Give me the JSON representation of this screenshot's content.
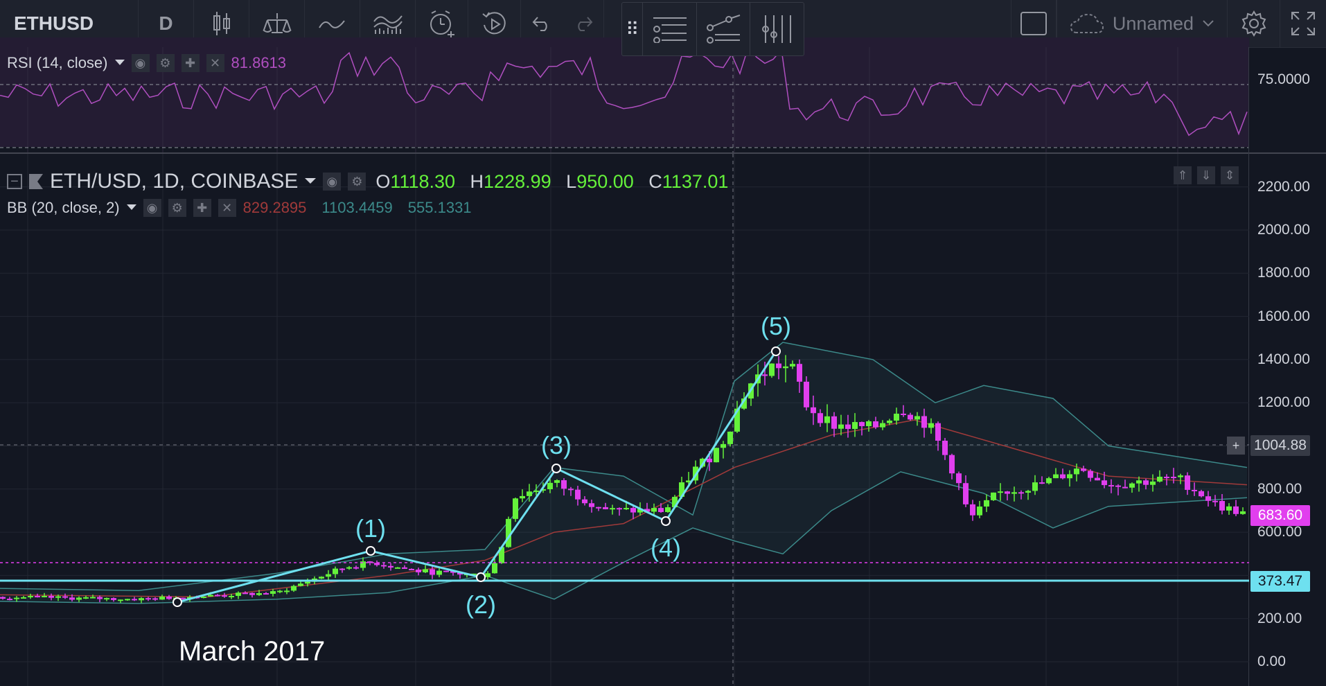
{
  "toolbar": {
    "symbol": "ETHUSD",
    "interval": "D",
    "layout_name": "Unnamed",
    "icons": [
      "candles-icon",
      "compare-icon",
      "indicators-icon",
      "templates-icon",
      "alert-icon",
      "replay-icon",
      "undo-icon",
      "redo-icon",
      "fullscreen-square-icon",
      "cloud-icon",
      "chevron-down-icon",
      "settings-icon",
      "expand-icon"
    ]
  },
  "drawing_toolbar": {
    "icons": [
      "grip-icon",
      "horizontal-lines-icon",
      "trend-line-icon",
      "fib-tool-icon"
    ]
  },
  "rsi": {
    "label": "RSI (14, close)",
    "value": "81.8613",
    "axis_label": "75.0000",
    "color": "#b04fc0"
  },
  "main": {
    "title": "ETH/USD, 1D, COINBASE",
    "ohlc": {
      "o_label": "O",
      "o": "1118.30",
      "h_label": "H",
      "h": "1228.99",
      "l_label": "L",
      "l": "950.00",
      "c_label": "C",
      "c": "1137.01"
    },
    "bb": {
      "label": "BB (20, close, 2)",
      "basis": "829.2895",
      "upper": "1103.4459",
      "lower": "555.1331",
      "basis_color": "#a13a3a",
      "band_color": "#3c8a8a"
    },
    "price_axis": [
      "2200.00",
      "2000.00",
      "1800.00",
      "1600.00",
      "1400.00",
      "1200.00",
      "800.00",
      "600.00",
      "200.00",
      "0.00"
    ],
    "crosshair_price": "1004.88",
    "last_price": "683.60",
    "horizontal_line_price": "373.47",
    "colors": {
      "up": "#65f23b",
      "down": "#e13fee",
      "wave": "#6ee0ef",
      "magenta_line": "#e13fee",
      "background": "#131722"
    }
  },
  "annotations": {
    "waves": [
      "(1)",
      "(2)",
      "(3)",
      "(4)",
      "(5)"
    ],
    "note": "March 2017"
  }
}
